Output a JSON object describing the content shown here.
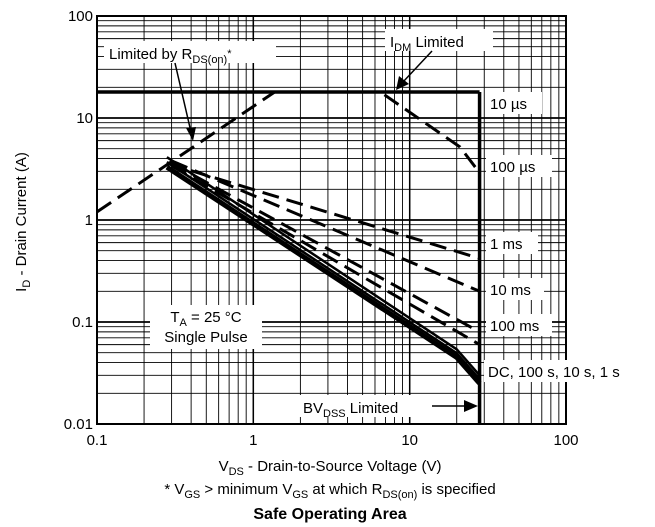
{
  "chart_data": {
    "type": "line",
    "title": "Safe Operating Area",
    "x_scale": "log",
    "y_scale": "log",
    "xlim": [
      0.1,
      100
    ],
    "ylim": [
      0.01,
      100
    ],
    "grid": true,
    "x_ticks": [
      "0.1",
      "1",
      "10",
      "100"
    ],
    "y_ticks": [
      "0.01",
      "0.1",
      "1",
      "10",
      "100"
    ],
    "xlabel": {
      "main": "V",
      "sub": "DS",
      "rest": " - Drain-to-Source Voltage (V)"
    },
    "ylabel": {
      "main": "I",
      "sub": "D",
      "rest": " - Drain Current (A)"
    },
    "footnote": {
      "p1": "* V",
      "s1": "GS",
      "p2": "  > minimum V",
      "s2": "GS",
      "p3": " at which R",
      "s3": "DS(on)",
      "p4": " is specified"
    },
    "annotations": {
      "rds_limit": {
        "main": "Limited by R",
        "sub": "DS(on)",
        "rest": "*"
      },
      "idm_limit": {
        "main": "I",
        "sub": "DM",
        "rest": " Limited"
      },
      "bvdss_limit": {
        "main": "BV",
        "sub": "DSS",
        "rest": " Limited"
      },
      "conditions": {
        "line1_main": "T",
        "line1_sub": "A",
        "line1_rest": " = 25 °C",
        "line2": "Single Pulse"
      }
    },
    "limits": {
      "idm_A": 18,
      "bvdss_V": 28
    },
    "series": [
      {
        "name": "10 µs",
        "style": "dashed",
        "points": [
          [
            0.1,
            1.2
          ],
          [
            1.37,
            18
          ],
          [
            6.5,
            18
          ],
          [
            21,
            5.2
          ],
          [
            28,
            2.9
          ]
        ]
      },
      {
        "name": "100 µs",
        "style": "dashed",
        "points": [
          [
            0.28,
            3.6
          ],
          [
            28,
            0.42
          ]
        ]
      },
      {
        "name": "1 ms",
        "style": "dashed",
        "points": [
          [
            0.3,
            3.8
          ],
          [
            28,
            0.2
          ]
        ]
      },
      {
        "name": "10 ms",
        "style": "dashed",
        "points": [
          [
            0.3,
            3.6
          ],
          [
            28,
            0.08
          ]
        ]
      },
      {
        "name": "100 ms",
        "style": "dashed",
        "points": [
          [
            0.3,
            3.4
          ],
          [
            28,
            0.06
          ]
        ]
      },
      {
        "name": "DC, 100 s, 10 s,  1 s",
        "style": "solid",
        "points": [
          [
            0.28,
            3.3
          ],
          [
            20,
            0.045
          ],
          [
            28,
            0.025
          ]
        ]
      }
    ]
  }
}
